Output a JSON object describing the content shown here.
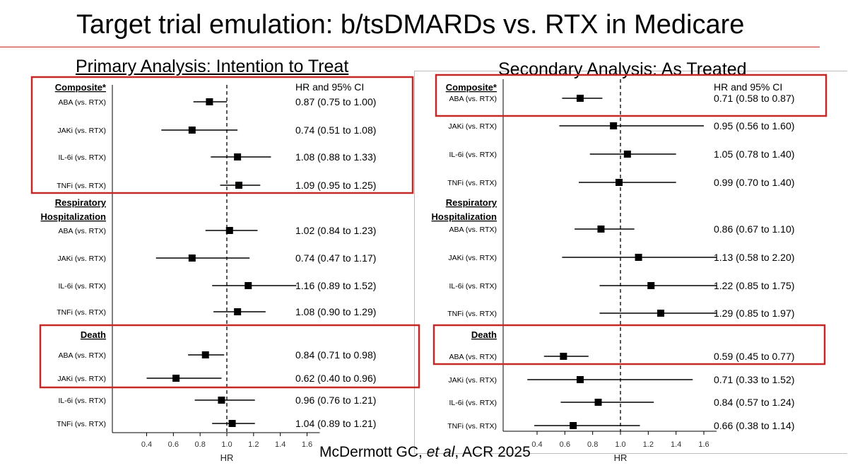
{
  "slide": {
    "title": "Target trial emulation: b/tsDMARDs vs. RTX in Medicare",
    "citation_authors": "McDermott GC, ",
    "citation_etal": "et al",
    "citation_rest": ", ACR 2025"
  },
  "colors": {
    "highlight_box": "#c62828",
    "marks": "#000000",
    "title_rule": "#c62828"
  },
  "chart_data": [
    {
      "type": "forest",
      "title": "Primary Analysis: Intention to Treat",
      "xlabel": "HR",
      "xlim": [
        0.4,
        1.6
      ],
      "xticks": [
        "0.4",
        "0.6",
        "0.8",
        "1.0",
        "1.2",
        "1.4",
        "1.6"
      ],
      "reference_line": 1.0,
      "ci_header": "HR and 95% CI",
      "groups": [
        {
          "name": "Composite*",
          "highlighted_rows": [
            0,
            1,
            2,
            3
          ],
          "rows": [
            {
              "label": "ABA (vs. RTX)",
              "hr": 0.87,
              "lo": 0.75,
              "hi": 1.0,
              "text": "0.87 (0.75 to 1.00)"
            },
            {
              "label": "JAKi (vs. RTX)",
              "hr": 0.74,
              "lo": 0.51,
              "hi": 1.08,
              "text": "0.74 (0.51 to 1.08)"
            },
            {
              "label": "IL-6i (vs. RTX)",
              "hr": 1.08,
              "lo": 0.88,
              "hi": 1.33,
              "text": "1.08 (0.88 to 1.33)"
            },
            {
              "label": "TNFi (vs. RTX)",
              "hr": 1.09,
              "lo": 0.95,
              "hi": 1.25,
              "text": "1.09 (0.95 to 1.25)"
            }
          ]
        },
        {
          "name": [
            "Respiratory",
            "Hospitalization"
          ],
          "highlighted_rows": [],
          "rows": [
            {
              "label": "ABA (vs. RTX)",
              "hr": 1.02,
              "lo": 0.84,
              "hi": 1.23,
              "text": "1.02 (0.84 to 1.23)"
            },
            {
              "label": "JAKi (vs. RTX)",
              "hr": 0.74,
              "lo": 0.47,
              "hi": 1.17,
              "text": "0.74 (0.47 to 1.17)"
            },
            {
              "label": "IL-6i (vs. RTX)",
              "hr": 1.16,
              "lo": 0.89,
              "hi": 1.52,
              "text": "1.16 (0.89 to 1.52)"
            },
            {
              "label": "TNFi (vs. RTX)",
              "hr": 1.08,
              "lo": 0.9,
              "hi": 1.29,
              "text": "1.08 (0.90 to 1.29)"
            }
          ]
        },
        {
          "name": "Death",
          "highlighted_rows": [
            0,
            1
          ],
          "rows": [
            {
              "label": "ABA (vs. RTX)",
              "hr": 0.84,
              "lo": 0.71,
              "hi": 0.98,
              "text": "0.84 (0.71 to 0.98)"
            },
            {
              "label": "JAKi (vs. RTX)",
              "hr": 0.62,
              "lo": 0.4,
              "hi": 0.96,
              "text": "0.62 (0.40 to 0.96)"
            },
            {
              "label": "IL-6i (vs. RTX)",
              "hr": 0.96,
              "lo": 0.76,
              "hi": 1.21,
              "text": "0.96 (0.76 to 1.21)"
            },
            {
              "label": "TNFi (vs. RTX)",
              "hr": 1.04,
              "lo": 0.89,
              "hi": 1.21,
              "text": "1.04 (0.89 to 1.21)"
            }
          ]
        }
      ]
    },
    {
      "type": "forest",
      "title": "Secondary Analysis: As Treated",
      "xlabel": "HR",
      "xlim": [
        0.4,
        1.6
      ],
      "xticks": [
        "0.4",
        "0.6",
        "0.8",
        "1.0",
        "1.2",
        "1.4",
        "1.6"
      ],
      "reference_line": 1.0,
      "ci_header": "HR and 95% CI",
      "groups": [
        {
          "name": "Composite*",
          "highlighted_rows": [
            0
          ],
          "rows": [
            {
              "label": "ABA (vs. RTX)",
              "hr": 0.71,
              "lo": 0.58,
              "hi": 0.87,
              "text": "0.71 (0.58 to 0.87)"
            },
            {
              "label": "JAKi (vs. RTX)",
              "hr": 0.95,
              "lo": 0.56,
              "hi": 1.6,
              "text": "0.95 (0.56 to 1.60)"
            },
            {
              "label": "IL-6i (vs. RTX)",
              "hr": 1.05,
              "lo": 0.78,
              "hi": 1.4,
              "text": "1.05 (0.78 to 1.40)"
            },
            {
              "label": "TNFi (vs. RTX)",
              "hr": 0.99,
              "lo": 0.7,
              "hi": 1.4,
              "text": "0.99 (0.70 to 1.40)"
            }
          ]
        },
        {
          "name": [
            "Respiratory",
            "Hospitalization"
          ],
          "highlighted_rows": [],
          "rows": [
            {
              "label": "ABA (vs. RTX)",
              "hr": 0.86,
              "lo": 0.67,
              "hi": 1.1,
              "text": "0.86 (0.67 to 1.10)"
            },
            {
              "label": "JAKi (vs. RTX)",
              "hr": 1.13,
              "lo": 0.58,
              "hi": 2.2,
              "text": "1.13 (0.58 to 2.20)"
            },
            {
              "label": "IL-6i (vs. RTX)",
              "hr": 1.22,
              "lo": 0.85,
              "hi": 1.75,
              "text": "1.22 (0.85 to 1.75)"
            },
            {
              "label": "TNFi (vs. RTX)",
              "hr": 1.29,
              "lo": 0.85,
              "hi": 1.97,
              "text": "1.29 (0.85 to 1.97)"
            }
          ]
        },
        {
          "name": "Death",
          "highlighted_rows": [
            0
          ],
          "rows": [
            {
              "label": "ABA (vs. RTX)",
              "hr": 0.59,
              "lo": 0.45,
              "hi": 0.77,
              "text": "0.59 (0.45 to 0.77)"
            },
            {
              "label": "JAKi (vs. RTX)",
              "hr": 0.71,
              "lo": 0.33,
              "hi": 1.52,
              "text": "0.71 (0.33 to 1.52)"
            },
            {
              "label": "IL-6i (vs. RTX)",
              "hr": 0.84,
              "lo": 0.57,
              "hi": 1.24,
              "text": "0.84 (0.57 to 1.24)"
            },
            {
              "label": "TNFi (vs. RTX)",
              "hr": 0.66,
              "lo": 0.38,
              "hi": 1.14,
              "text": "0.66 (0.38 to 1.14)"
            }
          ]
        }
      ]
    }
  ]
}
